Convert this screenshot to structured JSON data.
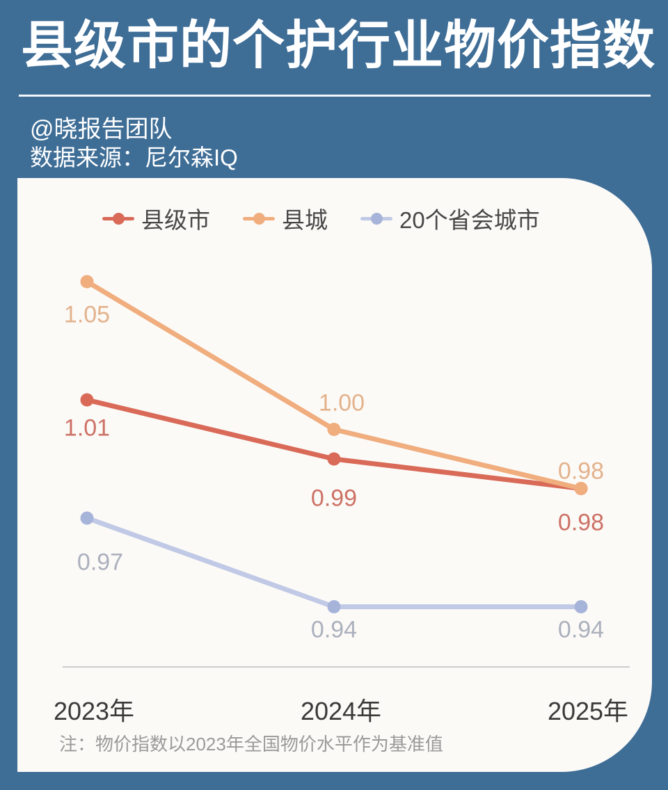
{
  "header": {
    "title": "县级市的个护行业物价指数",
    "byline": "@晓报告团队",
    "source": "数据来源：尼尔森IQ"
  },
  "colors": {
    "background": "#3e6d96",
    "card_background": "#fcfaf7",
    "axis_line": "#cbcbcb",
    "tick_label_text": "#3a3a3a",
    "legend_text": "#474747",
    "note_text": "#9a9a9a",
    "title_text": "#ffffff"
  },
  "chart_data": {
    "type": "line",
    "title": "县级市的个护行业物价指数",
    "categories": [
      "2023年",
      "2024年",
      "2025年"
    ],
    "series": [
      {
        "name": "县级市",
        "values": [
          1.01,
          0.99,
          0.98
        ],
        "color": "#d96a58",
        "label_color": "#cd7166"
      },
      {
        "name": "县城",
        "values": [
          1.05,
          1.0,
          0.98
        ],
        "color": "#f0ad7e",
        "label_color": "#e3b28c"
      },
      {
        "name": "20个省会城市",
        "values": [
          0.97,
          0.94,
          0.94
        ],
        "color": "#c0c9e5",
        "dot_color": "#a7b4d9",
        "label_color": "#abb0bd"
      }
    ],
    "value_labels": [
      "1.05",
      "1.01",
      "1.00",
      "0.99",
      "0.98",
      "0.98",
      "0.97",
      "0.94",
      "0.94"
    ],
    "ylim": [
      0.92,
      1.07
    ],
    "grid": false,
    "legend_position": "top",
    "note": "注：物价指数以2023年全国物价水平作为基准值"
  }
}
